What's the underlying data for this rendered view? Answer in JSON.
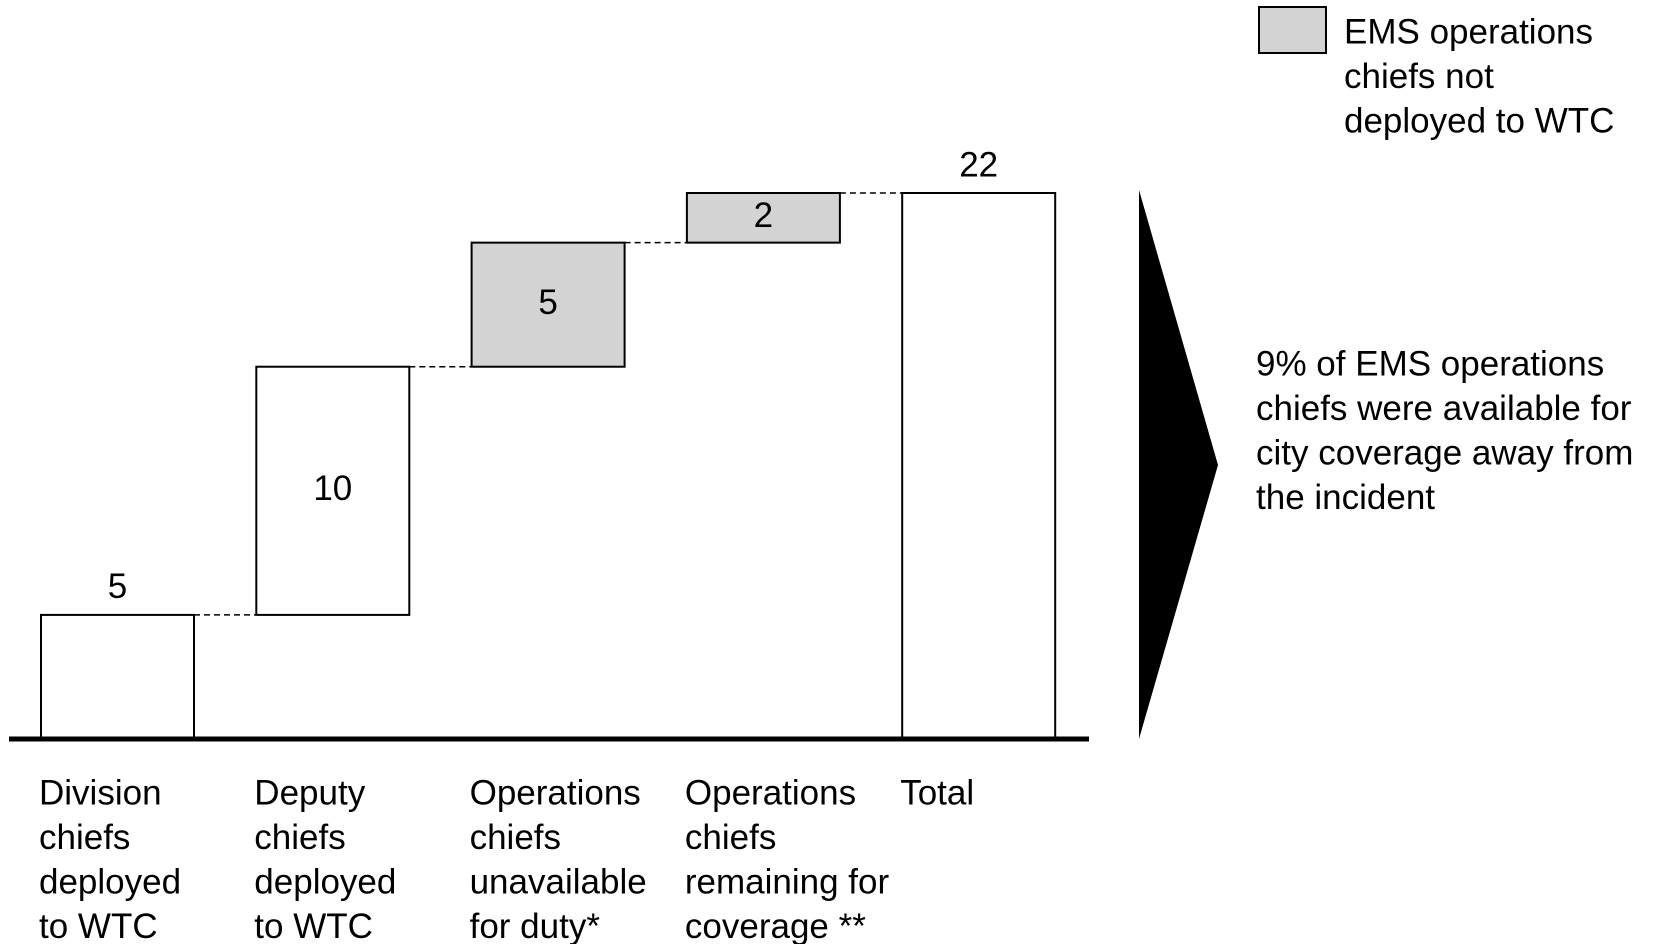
{
  "chart_data": {
    "type": "waterfall",
    "categories": [
      [
        "Division",
        "chiefs",
        "deployed",
        "to WTC"
      ],
      [
        "Deputy",
        "chiefs",
        "deployed",
        "to WTC"
      ],
      [
        "Operations",
        "chiefs",
        "unavailable",
        "for duty*"
      ],
      [
        "Operations",
        "chiefs",
        "remaining for",
        "coverage **"
      ],
      [
        "Total"
      ]
    ],
    "values": [
      5,
      10,
      5,
      2,
      22
    ],
    "measure": [
      "relative",
      "relative",
      "relative",
      "relative",
      "total"
    ],
    "colors": [
      "#ffffff",
      "#ffffff",
      "#d3d3d3",
      "#d3d3d3",
      "#ffffff"
    ],
    "label_position": [
      "above",
      "inside",
      "inside",
      "inside",
      "above"
    ],
    "ylim": [
      0,
      22
    ],
    "legend": {
      "label": [
        "EMS operations",
        "chiefs not",
        "deployed to WTC"
      ],
      "color": "#d3d3d3"
    },
    "annotation": [
      "9% of EMS operations",
      "chiefs were available for",
      "city coverage away from",
      "the incident"
    ]
  }
}
